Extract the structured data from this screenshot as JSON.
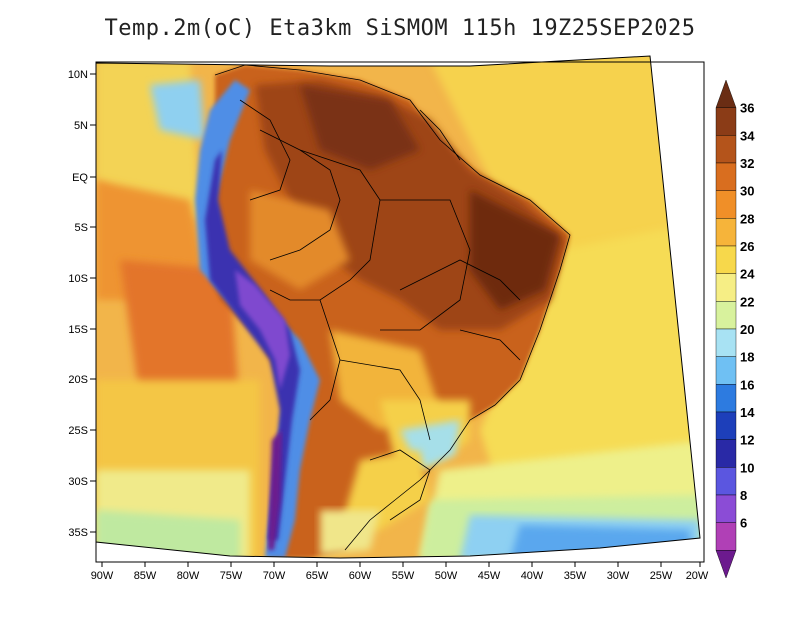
{
  "title": "Temp.2m(oC) Eta3km SiSMOM 115h 19Z25SEP2025",
  "variable": "Temp.2m",
  "units": "oC",
  "model": "Eta3km",
  "lat_labels": [
    "10N",
    "5N",
    "EQ",
    "5S",
    "10S",
    "15S",
    "20S",
    "25S",
    "30S",
    "35S"
  ],
  "lon_labels": [
    "90W",
    "85W",
    "80W",
    "75W",
    "70W",
    "65W",
    "60W",
    "55W",
    "50W",
    "45W",
    "40W",
    "35W",
    "30W",
    "25W",
    "20W"
  ],
  "colorbar": {
    "labels": [
      "36",
      "34",
      "32",
      "30",
      "28",
      "26",
      "24",
      "22",
      "20",
      "18",
      "16",
      "14",
      "12",
      "10",
      "8",
      "6"
    ],
    "colors": [
      "#6a2d14",
      "#8b3c17",
      "#b4541b",
      "#d96e1f",
      "#f08f28",
      "#f6b43a",
      "#f7d84b",
      "#f6ee85",
      "#d8f29d",
      "#a8e2f3",
      "#6fc0f3",
      "#2d7be0",
      "#1d3fba",
      "#2929a6",
      "#5b56e0",
      "#8b4cd6",
      "#b040b6",
      "#6c1a8e"
    ]
  }
}
